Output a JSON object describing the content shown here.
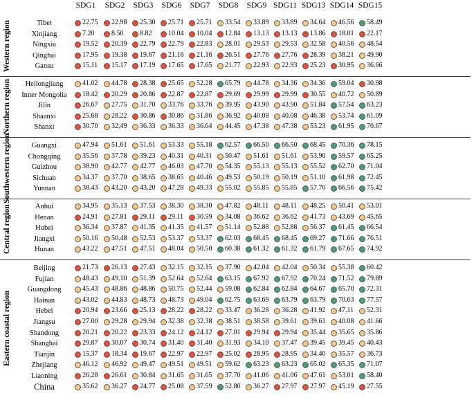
{
  "colors": {
    "red": "#e4503a",
    "orange": "#f3c989",
    "green": "#4e9e7a"
  },
  "chart_data": {
    "type": "table",
    "columns": [
      "SDG1",
      "SDG2",
      "SDG3",
      "SDG6",
      "SDG7",
      "SDG8",
      "SDG9",
      "SDG11",
      "SDG13",
      "SDG14",
      "SDG15"
    ],
    "regions": [
      {
        "name": "Western region",
        "rows": [
          {
            "label": "Tibet",
            "values": [
              22.75,
              22.98,
              25.3,
              25.71,
              25.71,
              33.54,
              33.89,
              33.89,
              34.64,
              46.56,
              58.49
            ],
            "colors": [
              "r",
              "r",
              "r",
              "r",
              "r",
              "o",
              "o",
              "o",
              "o",
              "o",
              "g"
            ]
          },
          {
            "label": "Xinjiang",
            "values": [
              7.2,
              8.5,
              8.82,
              10.04,
              10.04,
              12.84,
              13.13,
              13.13,
              13.86,
              18.01,
              22.17
            ],
            "colors": [
              "r",
              "r",
              "r",
              "r",
              "r",
              "r",
              "r",
              "r",
              "r",
              "r",
              "r"
            ]
          },
          {
            "label": "Ningxia",
            "values": [
              19.52,
              20.39,
              22.79,
              22.79,
              22.83,
              28.01,
              29.53,
              29.53,
              32.58,
              40.56,
              48.54
            ],
            "colors": [
              "r",
              "r",
              "r",
              "r",
              "r",
              "o",
              "o",
              "o",
              "o",
              "o",
              "o"
            ]
          },
          {
            "label": "Qinghai",
            "values": [
              17.95,
              19.38,
              19.67,
              21.16,
              21.16,
              26.51,
              27.76,
              27.76,
              28.39,
              38.21,
              49.9
            ],
            "colors": [
              "r",
              "r",
              "r",
              "r",
              "r",
              "r",
              "r",
              "r",
              "r",
              "o",
              "o"
            ]
          },
          {
            "label": "Gansu",
            "values": [
              15.11,
              15.17,
              17.19,
              17.65,
              17.65,
              21.77,
              22.93,
              22.93,
              25.23,
              30.95,
              36.66
            ],
            "colors": [
              "r",
              "r",
              "r",
              "r",
              "r",
              "o",
              "o",
              "o",
              "r",
              "r",
              "o"
            ]
          }
        ]
      },
      {
        "name": "Northern region",
        "rows": [
          {
            "label": "Heilongjiang",
            "values": [
              41.02,
              44.78,
              28.38,
              25.65,
              52.28,
              65.79,
              44.78,
              34.36,
              34.36,
              59.04,
              30.98
            ],
            "colors": [
              "o",
              "o",
              "r",
              "r",
              "o",
              "g",
              "o",
              "o",
              "o",
              "g",
              "r"
            ]
          },
          {
            "label": "Inner Mongolia",
            "values": [
              18.42,
              20.29,
              20.86,
              22.87,
              22.87,
              29.69,
              29.99,
              29.99,
              30.55,
              40.72,
              50.89
            ],
            "colors": [
              "r",
              "r",
              "r",
              "r",
              "r",
              "r",
              "r",
              "r",
              "r",
              "o",
              "o"
            ]
          },
          {
            "label": "Jilin",
            "values": [
              26.67,
              27.75,
              31.7,
              33.76,
              33.76,
              39.95,
              43.9,
              43.9,
              51.84,
              57.54,
              63.23
            ],
            "colors": [
              "r",
              "o",
              "o",
              "o",
              "o",
              "o",
              "o",
              "o",
              "o",
              "g",
              "g"
            ]
          },
          {
            "label": "Shaanxi",
            "values": [
              25.68,
              28.22,
              30.86,
              30.86,
              31.86,
              36.92,
              40.08,
              40.08,
              46.38,
              53.74,
              61.09
            ],
            "colors": [
              "r",
              "o",
              "r",
              "r",
              "o",
              "o",
              "o",
              "o",
              "o",
              "o",
              "g"
            ]
          },
          {
            "label": "Shanxi",
            "values": [
              30.7,
              32.49,
              36.33,
              36.33,
              36.64,
              44.45,
              47.38,
              47.38,
              53.23,
              61.95,
              70.67
            ],
            "colors": [
              "r",
              "o",
              "o",
              "o",
              "o",
              "o",
              "o",
              "o",
              "o",
              "g",
              "g"
            ]
          }
        ]
      },
      {
        "name": "Southwestern region",
        "rows": [
          {
            "label": "Guangxi",
            "values": [
              47.94,
              51.61,
              51.61,
              53.33,
              55.18,
              62.57,
              66.5,
              66.5,
              68.45,
              70.36,
              78.15
            ],
            "colors": [
              "o",
              "o",
              "o",
              "o",
              "o",
              "g",
              "g",
              "g",
              "g",
              "g",
              "g"
            ]
          },
          {
            "label": "Chongqing",
            "values": [
              35.56,
              37.78,
              39.23,
              40.31,
              40.31,
              50.47,
              51.61,
              51.61,
              53.9,
              59.57,
              65.25
            ],
            "colors": [
              "o",
              "o",
              "o",
              "o",
              "o",
              "o",
              "o",
              "o",
              "o",
              "g",
              "g"
            ]
          },
          {
            "label": "Guizhou",
            "values": [
              38.9,
              42.77,
              42.77,
              46.03,
              47.7,
              54.35,
              55.13,
              55.13,
              55.52,
              62.7,
              71.04
            ],
            "colors": [
              "o",
              "o",
              "o",
              "o",
              "o",
              "o",
              "o",
              "o",
              "o",
              "g",
              "g"
            ]
          },
          {
            "label": "Sichuan",
            "values": [
              34.37,
              37.7,
              38.65,
              38.65,
              40.46,
              49.53,
              50.19,
              50.19,
              51.1,
              61.98,
              72.45
            ],
            "colors": [
              "o",
              "o",
              "o",
              "o",
              "o",
              "o",
              "o",
              "o",
              "o",
              "g",
              "g"
            ]
          },
          {
            "label": "Yunnan",
            "values": [
              38.43,
              43.2,
              43.2,
              47.28,
              49.33,
              55.02,
              55.85,
              55.85,
              57.7,
              66.56,
              75.42
            ],
            "colors": [
              "o",
              "o",
              "o",
              "o",
              "o",
              "o",
              "o",
              "o",
              "g",
              "g",
              "g"
            ]
          }
        ]
      },
      {
        "name": "Central region",
        "rows": [
          {
            "label": "Anhui",
            "values": [
              34.95,
              35.13,
              37.53,
              38.3,
              38.3,
              47.82,
              48.11,
              48.11,
              48.25,
              50.41,
              53.01
            ],
            "colors": [
              "o",
              "o",
              "o",
              "o",
              "o",
              "o",
              "o",
              "o",
              "o",
              "o",
              "o"
            ]
          },
          {
            "label": "Henan",
            "values": [
              24.91,
              27.81,
              29.11,
              29.11,
              30.59,
              34.08,
              36.62,
              36.62,
              41.73,
              43.69,
              45.65
            ],
            "colors": [
              "r",
              "o",
              "r",
              "r",
              "r",
              "o",
              "o",
              "o",
              "o",
              "o",
              "o"
            ]
          },
          {
            "label": "Hubei",
            "values": [
              36.34,
              37.87,
              41.35,
              41.35,
              41.57,
              51.14,
              52.88,
              52.88,
              56.37,
              61.45,
              66.54
            ],
            "colors": [
              "o",
              "o",
              "o",
              "o",
              "o",
              "o",
              "o",
              "o",
              "o",
              "g",
              "g"
            ]
          },
          {
            "label": "Jiangxi",
            "values": [
              50.16,
              50.48,
              52.53,
              53.37,
              53.37,
              62.03,
              68.45,
              68.45,
              69.27,
              71.66,
              76.51
            ],
            "colors": [
              "o",
              "o",
              "o",
              "o",
              "o",
              "g",
              "g",
              "g",
              "g",
              "g",
              "g"
            ]
          },
          {
            "label": "Hunan",
            "values": [
              43.22,
              47.51,
              47.51,
              48.04,
              50.5,
              60.38,
              61.32,
              61.32,
              61.79,
              67.65,
              74.92
            ],
            "colors": [
              "o",
              "o",
              "o",
              "o",
              "o",
              "g",
              "g",
              "g",
              "g",
              "g",
              "g"
            ]
          }
        ]
      },
      {
        "name": "Eastern coastal region",
        "rows": [
          {
            "label": "Beijing",
            "values": [
              21.73,
              26.13,
              27.43,
              32.15,
              32.15,
              37.9,
              42.04,
              42.04,
              50.34,
              55.38,
              60.42
            ],
            "colors": [
              "r",
              "r",
              "r",
              "o",
              "o",
              "o",
              "o",
              "o",
              "o",
              "o",
              "g"
            ]
          },
          {
            "label": "Fujian",
            "values": [
              48.43,
              49.1,
              51.39,
              52.64,
              52.64,
              63.15,
              67.92,
              67.92,
              70.24,
              71.52,
              79.89
            ],
            "colors": [
              "o",
              "o",
              "o",
              "o",
              "o",
              "g",
              "g",
              "g",
              "g",
              "g",
              "g"
            ]
          },
          {
            "label": "Guangdong",
            "values": [
              45.43,
              48.86,
              48.86,
              50.75,
              52.44,
              59.08,
              62.84,
              62.84,
              64.67,
              65.7,
              72.31
            ],
            "colors": [
              "o",
              "o",
              "o",
              "o",
              "o",
              "o",
              "g",
              "g",
              "g",
              "g",
              "g"
            ]
          },
          {
            "label": "Hainan",
            "values": [
              43.02,
              44.83,
              48.73,
              48.73,
              49.04,
              62.75,
              63.69,
              63.79,
              63.79,
              70.63,
              77.57
            ],
            "colors": [
              "o",
              "o",
              "o",
              "o",
              "o",
              "g",
              "g",
              "g",
              "g",
              "g",
              "g"
            ]
          },
          {
            "label": "Hebei",
            "values": [
              20.94,
              23.66,
              25.13,
              28.22,
              28.22,
              33.47,
              36.28,
              36.28,
              41.92,
              47.11,
              52.31
            ],
            "colors": [
              "r",
              "r",
              "r",
              "r",
              "r",
              "o",
              "o",
              "o",
              "o",
              "o",
              "o"
            ]
          },
          {
            "label": "Jiangsu",
            "values": [
              27.0,
              29.28,
              29.94,
              32.38,
              32.38,
              38.51,
              38.58,
              39.61,
              39.61,
              40.08,
              41.66
            ],
            "colors": [
              "r",
              "o",
              "o",
              "o",
              "o",
              "o",
              "o",
              "o",
              "o",
              "o",
              "o"
            ]
          },
          {
            "label": "Shandong",
            "values": [
              20.21,
              20.22,
              23.33,
              24.12,
              24.12,
              27.01,
              29.94,
              29.94,
              35.44,
              35.65,
              35.86
            ],
            "colors": [
              "r",
              "r",
              "r",
              "r",
              "r",
              "r",
              "r",
              "r",
              "o",
              "o",
              "o"
            ]
          },
          {
            "label": "Shanghai",
            "values": [
              29.87,
              30.07,
              30.74,
              31.4,
              31.4,
              31.93,
              34.1,
              37.47,
              39.45,
              39.45,
              40.43
            ],
            "colors": [
              "r",
              "r",
              "r",
              "r",
              "r",
              "o",
              "o",
              "o",
              "o",
              "o",
              "o"
            ]
          },
          {
            "label": "Tianjin",
            "values": [
              15.37,
              18.34,
              19.67,
              22.97,
              22.97,
              25.02,
              28.95,
              28.95,
              34.4,
              35.57,
              36.73
            ],
            "colors": [
              "r",
              "r",
              "r",
              "r",
              "r",
              "r",
              "r",
              "r",
              "o",
              "o",
              "o"
            ]
          },
          {
            "label": "Zhejiang",
            "values": [
              46.12,
              46.92,
              49.47,
              49.51,
              49.51,
              59.62,
              63.23,
              63.23,
              65.02,
              65.35,
              71.07
            ],
            "colors": [
              "o",
              "o",
              "o",
              "o",
              "o",
              "o",
              "g",
              "g",
              "g",
              "g",
              "g"
            ]
          },
          {
            "label": "Liaoning",
            "values": [
              26.28,
              26.61,
              30.84,
              31.65,
              31.65,
              37.7,
              41.06,
              41.06,
              47.61,
              53.01,
              58.4
            ],
            "colors": [
              "r",
              "r",
              "o",
              "o",
              "o",
              "o",
              "o",
              "o",
              "o",
              "o",
              "g"
            ]
          },
          {
            "label": "China",
            "values": [
              35.62,
              36.27,
              24.77,
              25.08,
              37.59,
              52.8,
              36.27,
              27.97,
              27.97,
              45.19,
              27.55
            ],
            "colors": [
              "o",
              "o",
              "r",
              "r",
              "o",
              "g",
              "o",
              "r",
              "r",
              "o",
              "r"
            ]
          }
        ]
      }
    ]
  }
}
